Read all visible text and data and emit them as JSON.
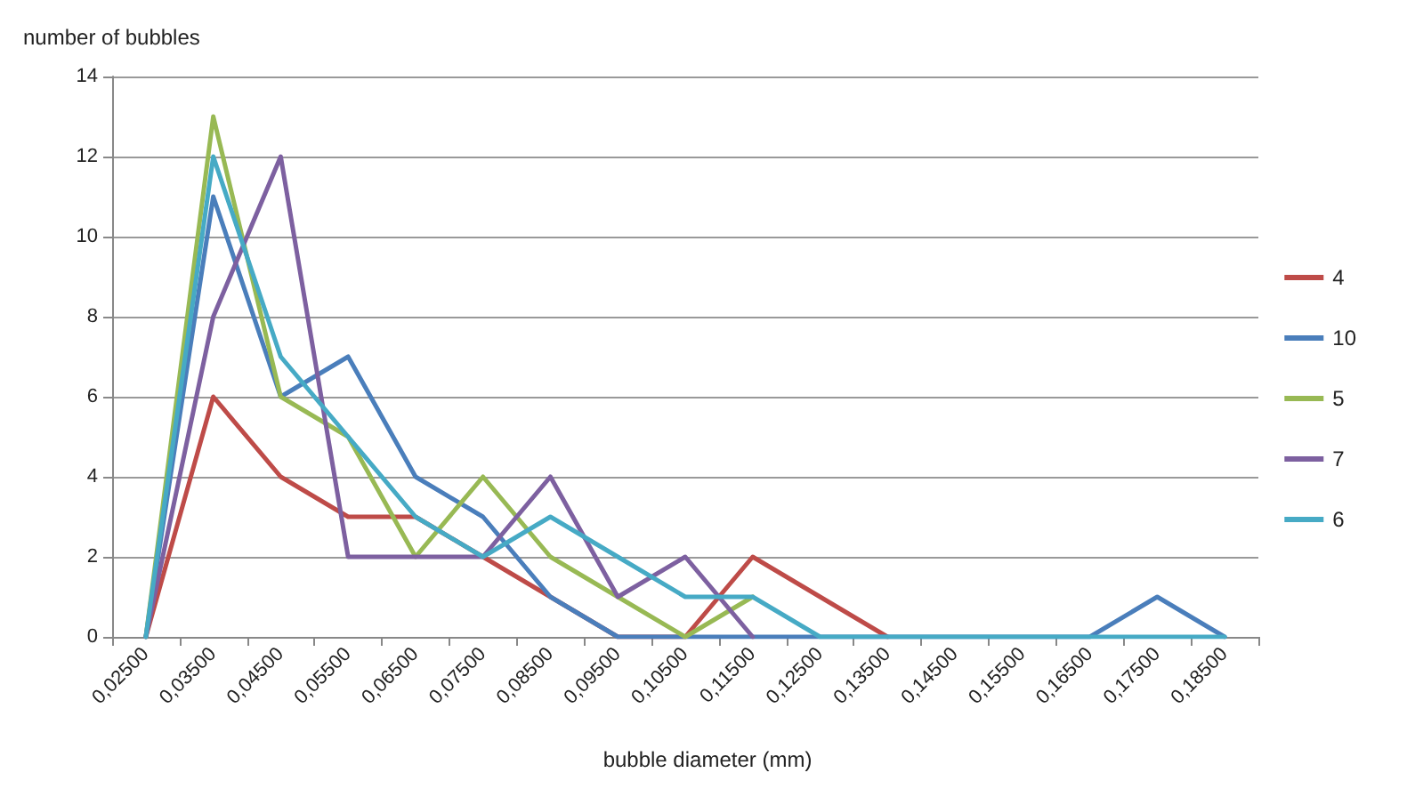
{
  "chart_data": {
    "type": "line",
    "xlabel": "bubble diameter (mm)",
    "ylabel": "number of bubbles",
    "categories": [
      "0,02500",
      "0,03500",
      "0,04500",
      "0,05500",
      "0,06500",
      "0,07500",
      "0,08500",
      "0,09500",
      "0,10500",
      "0,11500",
      "0,12500",
      "0,13500",
      "0,14500",
      "0,15500",
      "0,16500",
      "0,17500",
      "0,18500"
    ],
    "series": [
      {
        "name": "4",
        "color": "#be4b48",
        "values": [
          0,
          6,
          4,
          3,
          3,
          2,
          1,
          0,
          0,
          2,
          1,
          0,
          null,
          null,
          null,
          null,
          null
        ]
      },
      {
        "name": "10",
        "color": "#4a7ebb",
        "values": [
          0,
          11,
          6,
          7,
          4,
          3,
          1,
          0,
          0,
          0,
          0,
          0,
          0,
          0,
          0,
          1,
          0
        ]
      },
      {
        "name": "5",
        "color": "#98b954",
        "values": [
          0,
          13,
          6,
          5,
          2,
          4,
          2,
          1,
          0,
          1,
          null,
          null,
          null,
          null,
          null,
          null,
          null
        ]
      },
      {
        "name": "7",
        "color": "#7d60a0",
        "values": [
          0,
          8,
          12,
          2,
          2,
          2,
          4,
          1,
          2,
          0,
          null,
          null,
          null,
          null,
          null,
          null,
          null
        ]
      },
      {
        "name": "6",
        "color": "#46aac5",
        "values": [
          0,
          12,
          7,
          5,
          3,
          2,
          3,
          2,
          1,
          1,
          0,
          0,
          0,
          0,
          0,
          0,
          0
        ]
      }
    ],
    "ylim": [
      0,
      14
    ],
    "yticks": [
      0,
      2,
      4,
      6,
      8,
      10,
      12,
      14
    ],
    "grid": "y",
    "legend": "right",
    "marker": "none",
    "line_style": "solid"
  }
}
